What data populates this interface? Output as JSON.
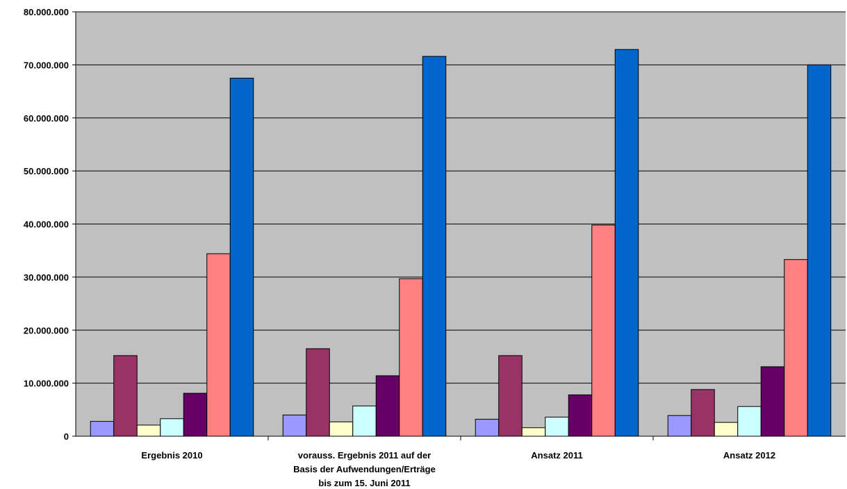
{
  "chart_data": {
    "type": "bar",
    "title": "",
    "xlabel": "",
    "ylabel": "",
    "ylim": [
      0,
      80000000
    ],
    "y_ticks": [
      {
        "value": 0,
        "label": "0"
      },
      {
        "value": 10000000,
        "label": "10.000.000"
      },
      {
        "value": 20000000,
        "label": "20.000.000"
      },
      {
        "value": 30000000,
        "label": "30.000.000"
      },
      {
        "value": 40000000,
        "label": "40.000.000"
      },
      {
        "value": 50000000,
        "label": "50.000.000"
      },
      {
        "value": 60000000,
        "label": "60.000.000"
      },
      {
        "value": 70000000,
        "label": "70.000.000"
      },
      {
        "value": 80000000,
        "label": "80.000.000"
      }
    ],
    "grid": true,
    "legend": "none",
    "plot_background": "#C0C0C0",
    "categories": [
      [
        "Ergebnis 2010"
      ],
      [
        "vorauss. Ergebnis 2011 auf der",
        "Basis der Aufwendungen/Erträge",
        "bis zum 15. Juni 2011"
      ],
      [
        "Ansatz 2011"
      ],
      [
        "Ansatz 2012"
      ]
    ],
    "series": [
      {
        "color": "#9999FF",
        "values": [
          2800000,
          4000000,
          3200000,
          3900000
        ]
      },
      {
        "color": "#993366",
        "values": [
          15200000,
          16500000,
          15200000,
          8800000
        ]
      },
      {
        "color": "#FFFFCC",
        "values": [
          2100000,
          2700000,
          1600000,
          2600000
        ]
      },
      {
        "color": "#CCFFFF",
        "values": [
          3300000,
          5700000,
          3600000,
          5600000
        ]
      },
      {
        "color": "#660066",
        "values": [
          8100000,
          11400000,
          7800000,
          13100000
        ]
      },
      {
        "color": "#FF8080",
        "values": [
          34400000,
          29700000,
          39800000,
          33300000
        ]
      },
      {
        "color": "#0066CC",
        "values": [
          67500000,
          71600000,
          72900000,
          70000000
        ]
      }
    ]
  }
}
